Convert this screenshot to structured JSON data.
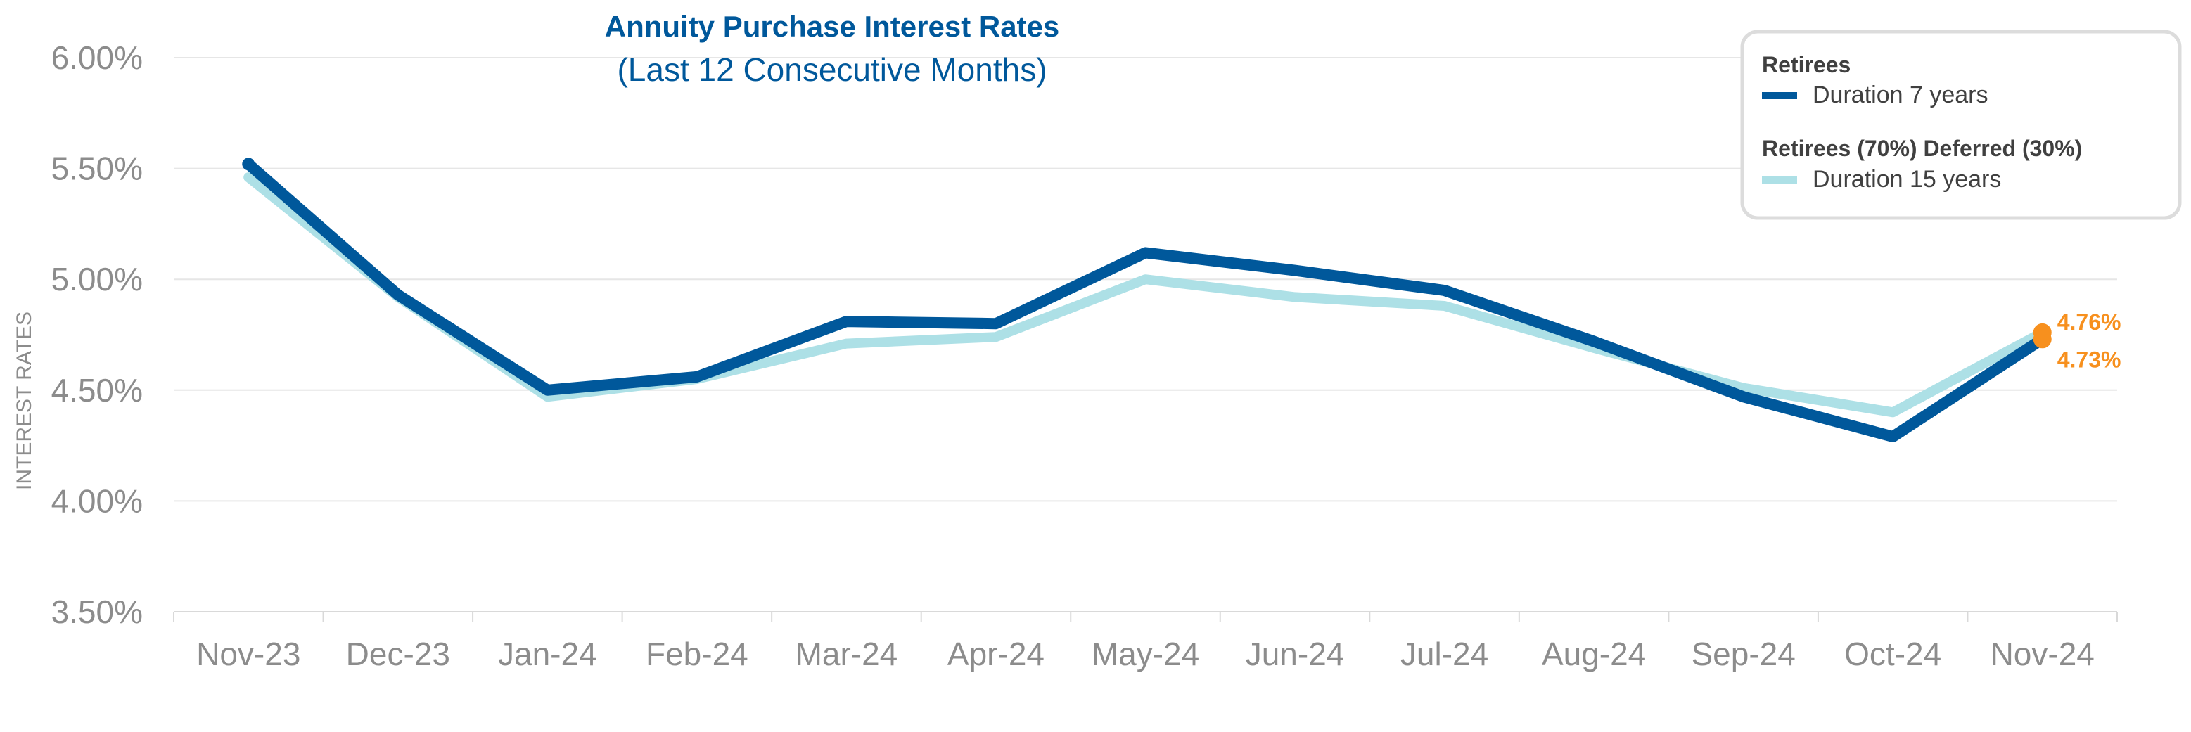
{
  "chart_data": {
    "type": "line",
    "title": "Annuity Purchase Interest Rates",
    "subtitle": "(Last 12 Consecutive Months)",
    "xlabel": "",
    "ylabel": "INTEREST RATES",
    "ylim": [
      3.5,
      6.0
    ],
    "y_ticks": [
      "3.50%",
      "4.00%",
      "4.50%",
      "5.00%",
      "5.50%",
      "6.00%"
    ],
    "y_tick_values": [
      3.5,
      4.0,
      4.5,
      5.0,
      5.5,
      6.0
    ],
    "grid": true,
    "legend_position": "top-right",
    "categories": [
      "Nov-23",
      "Dec-23",
      "Jan-24",
      "Feb-24",
      "Mar-24",
      "Apr-24",
      "May-24",
      "Jun-24",
      "Jul-24",
      "Aug-24",
      "Sep-24",
      "Oct-24",
      "Nov-24"
    ],
    "series": [
      {
        "name": "Duration 15 years",
        "group": "Retirees (70%) Deferred (30%)",
        "color": "#ade0e6",
        "values": [
          5.46,
          4.92,
          4.47,
          4.55,
          4.71,
          4.74,
          5.0,
          4.92,
          4.88,
          4.69,
          4.51,
          4.4,
          4.76
        ]
      },
      {
        "name": "Duration 7 years",
        "group": "Retirees",
        "color": "#00589b",
        "values": [
          5.52,
          4.93,
          4.5,
          4.56,
          4.81,
          4.8,
          5.12,
          5.04,
          4.95,
          4.72,
          4.47,
          4.29,
          4.73
        ]
      }
    ],
    "annotations": [
      {
        "text": "4.76%",
        "series": "Duration 15 years",
        "index": 12,
        "color": "#f7901e"
      },
      {
        "text": "4.73%",
        "series": "Duration 7 years",
        "index": 12,
        "color": "#f7901e"
      }
    ]
  },
  "legend": {
    "group1_title": "Retirees",
    "group1_item": "Duration 7 years",
    "group2_title": "Retirees (70%) Deferred (30%)",
    "group2_item": "Duration 15 years"
  },
  "colors": {
    "title": "#00589b",
    "axis_text": "#8c8c8c",
    "grid": "#e6e6e6",
    "annotation": "#f7901e"
  }
}
